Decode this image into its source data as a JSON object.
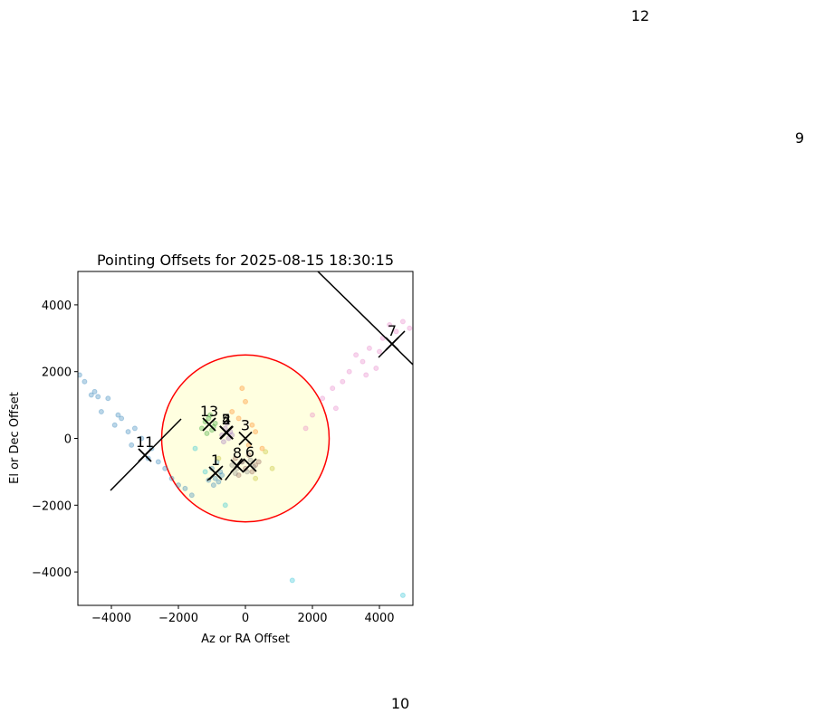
{
  "chart_data": {
    "type": "scatter",
    "title": "Pointing Offsets for 2025-08-15 18:30:15",
    "xlabel": "Az or RA Offset",
    "ylabel": "El or Dec Offset",
    "xlim": [
      -5000,
      5000
    ],
    "ylim": [
      -5000,
      5000
    ],
    "xticks": [
      {
        "value": -4000,
        "label": "−4000"
      },
      {
        "value": -2000,
        "label": "−2000"
      },
      0,
      2000,
      4000
    ],
    "yticks": [
      {
        "value": -4000,
        "label": "−4000"
      },
      {
        "value": -2000,
        "label": "−2000"
      },
      0,
      2000,
      4000
    ],
    "circle": {
      "center": [
        0,
        0
      ],
      "radius": 2500,
      "edgecolor": "#ff0000",
      "facecolor": "#ffffe0"
    },
    "clouds": [
      {
        "color": "#1f77b4",
        "x": [
          -4950,
          -4800,
          -4600,
          -4500,
          -4300,
          -4100,
          -3900,
          -3700,
          -3500,
          -3300,
          -3100,
          -2800,
          -2600,
          -2400,
          -2200,
          -2000,
          -1800,
          -1600,
          -4400,
          -3800,
          -3400,
          -2900
        ],
        "y": [
          1900,
          1700,
          1300,
          1400,
          800,
          1200,
          400,
          600,
          200,
          300,
          0,
          -300,
          -700,
          -900,
          -1200,
          -1400,
          -1500,
          -1700,
          1250,
          700,
          -200,
          -600
        ]
      },
      {
        "color": "#1f77b4",
        "x": [
          -1000,
          -900,
          -800,
          -750,
          -950,
          -850,
          -700,
          -1100
        ],
        "y": [
          -900,
          -1200,
          -1300,
          -1000,
          -1400,
          -700,
          -1100,
          -1250
        ]
      },
      {
        "color": "#e377c2",
        "x": [
          1800,
          2000,
          2300,
          2600,
          2900,
          3100,
          3300,
          3500,
          3700,
          3900,
          4100,
          4300,
          4500,
          4700,
          4900,
          3600,
          4000,
          2700
        ],
        "y": [
          300,
          700,
          1200,
          1500,
          1700,
          2000,
          2500,
          2300,
          2700,
          2100,
          3000,
          3400,
          3200,
          3500,
          3300,
          1900,
          2600,
          900
        ]
      },
      {
        "color": "#2ca02c",
        "x": [
          -1300,
          -1200,
          -1100,
          -1000,
          -900,
          -1150,
          -1050,
          -950
        ],
        "y": [
          300,
          500,
          600,
          250,
          450,
          150,
          700,
          350
        ]
      },
      {
        "color": "#9467bd",
        "x": [
          -700,
          -600,
          -500,
          -450,
          -650,
          -550,
          -400
        ],
        "y": [
          100,
          300,
          0,
          200,
          -100,
          450,
          100
        ]
      },
      {
        "color": "#8c564b",
        "x": [
          -300,
          -100,
          0,
          200,
          300,
          -200,
          100,
          400
        ],
        "y": [
          -600,
          -700,
          -900,
          -1000,
          -800,
          -1100,
          -500,
          -700
        ]
      },
      {
        "color": "#ff7f0e",
        "x": [
          -400,
          -200,
          0,
          200,
          -100,
          100,
          300,
          500
        ],
        "y": [
          800,
          600,
          1100,
          400,
          1500,
          -200,
          200,
          -300
        ]
      },
      {
        "color": "#7f7f7f",
        "x": [
          -400,
          -250,
          -100,
          50,
          250,
          -300,
          150
        ],
        "y": [
          -800,
          -900,
          -700,
          -1000,
          -850,
          -1050,
          -650
        ]
      },
      {
        "color": "#17becf",
        "x": [
          -1500,
          -1200,
          -600,
          1400,
          4700
        ],
        "y": [
          -300,
          -1000,
          -2000,
          -4250,
          -4700
        ]
      },
      {
        "color": "#bcbd22",
        "x": [
          -800,
          300,
          600,
          800
        ],
        "y": [
          -600,
          -1200,
          -400,
          -900
        ]
      }
    ],
    "lines": [
      {
        "x": [
          -4027,
          -1919
        ],
        "y": [
          -1558,
          583
        ]
      },
      {
        "x": [
          2162,
          5000
        ],
        "y": [
          5000,
          2209
        ]
      },
      {
        "x": [
          3973,
          4757
        ],
        "y": [
          2425,
          3213
        ]
      },
      {
        "x": [
          -1135,
          -676
        ],
        "y": [
          -1260,
          -827
        ]
      },
      {
        "x": [
          -600,
          -100
        ],
        "y": [
          -1250,
          -600
        ]
      }
    ],
    "targets": [
      {
        "label": "1",
        "x": -892,
        "y": -1043
      },
      {
        "label": "2",
        "x": -568,
        "y": 176
      },
      {
        "label": "3",
        "x": 0,
        "y": 0
      },
      {
        "label": "4",
        "x": -560,
        "y": 170
      },
      {
        "label": "5",
        "x": -575,
        "y": 180
      },
      {
        "label": "6",
        "x": 135,
        "y": -800
      },
      {
        "label": "7",
        "x": 4378,
        "y": 2832
      },
      {
        "label": "8",
        "x": -243,
        "y": -827
      },
      {
        "label": "9",
        "x": 16540,
        "y": 8600
      },
      {
        "label": "10",
        "x": 4622,
        "y": -8330
      },
      {
        "label": "11",
        "x": -3000,
        "y": -501
      },
      {
        "label": "12",
        "x": 11784,
        "y": 12263
      },
      {
        "label": "13",
        "x": -1081,
        "y": 420
      }
    ]
  }
}
